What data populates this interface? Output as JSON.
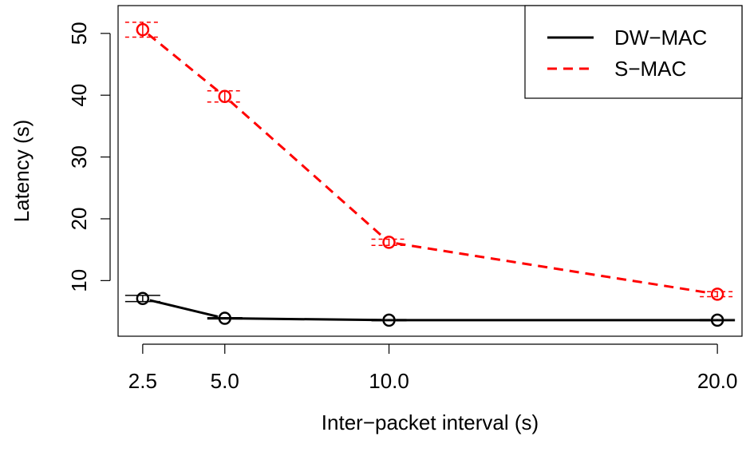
{
  "chart_data": {
    "type": "line",
    "title": "",
    "xlabel": "Inter−packet interval (s)",
    "ylabel": "Latency (s)",
    "x": [
      2.5,
      5.0,
      10.0,
      20.0
    ],
    "x_tick_labels": [
      "2.5",
      "5.0",
      "10.0",
      "20.0"
    ],
    "xlim": [
      1.75,
      20.75
    ],
    "ylim": [
      1.0,
      54.5
    ],
    "y_ticks": [
      10,
      20,
      30,
      40,
      50
    ],
    "grid": false,
    "legend_position": "top-right",
    "series": [
      {
        "name": "DW−MAC",
        "color": "#000000",
        "line_style": "solid",
        "marker": "open-circle",
        "values": [
          7.1,
          3.9,
          3.6,
          3.6
        ],
        "error_low": [
          6.6,
          3.8,
          3.5,
          3.5
        ],
        "error_high": [
          7.6,
          4.0,
          3.7,
          3.7
        ]
      },
      {
        "name": "S−MAC",
        "color": "#ff0000",
        "line_style": "dashed",
        "marker": "open-circle",
        "values": [
          50.6,
          39.8,
          16.2,
          7.8
        ],
        "error_low": [
          49.4,
          38.9,
          15.7,
          7.4
        ],
        "error_high": [
          51.8,
          40.7,
          16.7,
          8.2
        ]
      }
    ]
  }
}
